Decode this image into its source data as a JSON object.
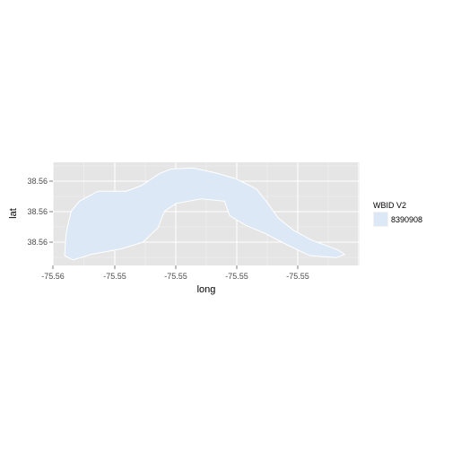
{
  "chart_data": {
    "type": "map",
    "xlabel": "long",
    "ylabel": "lat",
    "x_tick_labels": [
      "-75.56",
      "-75.55",
      "-75.55",
      "-75.55",
      "-75.55"
    ],
    "y_tick_labels": [
      "38.56",
      "38.56",
      "38.56"
    ],
    "legend": {
      "title": "WBID V2",
      "entries": [
        {
          "label": "8390908",
          "color": "#dce8f5"
        }
      ],
      "placement": "right"
    },
    "grid": true,
    "colors": {
      "panel_background": "#e5e5e5",
      "grid_line": "#ffffff",
      "polygon_fill": "#dce8f5",
      "polygon_outline": "#ffffff"
    },
    "series": [
      {
        "name": "8390908",
        "polygon": [
          [
            -75.5588,
            38.5626
          ],
          [
            -75.5587,
            38.5647
          ],
          [
            -75.5584,
            38.5666
          ],
          [
            -75.5579,
            38.5675
          ],
          [
            -75.5568,
            38.5684
          ],
          [
            -75.5551,
            38.5684
          ],
          [
            -75.5542,
            38.5689
          ],
          [
            -75.5531,
            38.57
          ],
          [
            -75.5524,
            38.5704
          ],
          [
            -75.5511,
            38.5705
          ],
          [
            -75.5496,
            38.57
          ],
          [
            -75.5485,
            38.5695
          ],
          [
            -75.5473,
            38.5686
          ],
          [
            -75.5467,
            38.5675
          ],
          [
            -75.546,
            38.566
          ],
          [
            -75.5451,
            38.5649
          ],
          [
            -75.544,
            38.564
          ],
          [
            -75.5424,
            38.5631
          ],
          [
            -75.542,
            38.5627
          ],
          [
            -75.5425,
            38.5624
          ],
          [
            -75.5441,
            38.5626
          ],
          [
            -75.5455,
            38.5636
          ],
          [
            -75.5468,
            38.5646
          ],
          [
            -75.5479,
            38.5653
          ],
          [
            -75.5489,
            38.5662
          ],
          [
            -75.5492,
            38.5675
          ],
          [
            -75.5506,
            38.5677
          ],
          [
            -75.5521,
            38.5673
          ],
          [
            -75.5528,
            38.5666
          ],
          [
            -75.5532,
            38.5651
          ],
          [
            -75.5541,
            38.5638
          ],
          [
            -75.5554,
            38.5632
          ],
          [
            -75.5572,
            38.5627
          ],
          [
            -75.5583,
            38.5622
          ]
        ]
      }
    ]
  }
}
